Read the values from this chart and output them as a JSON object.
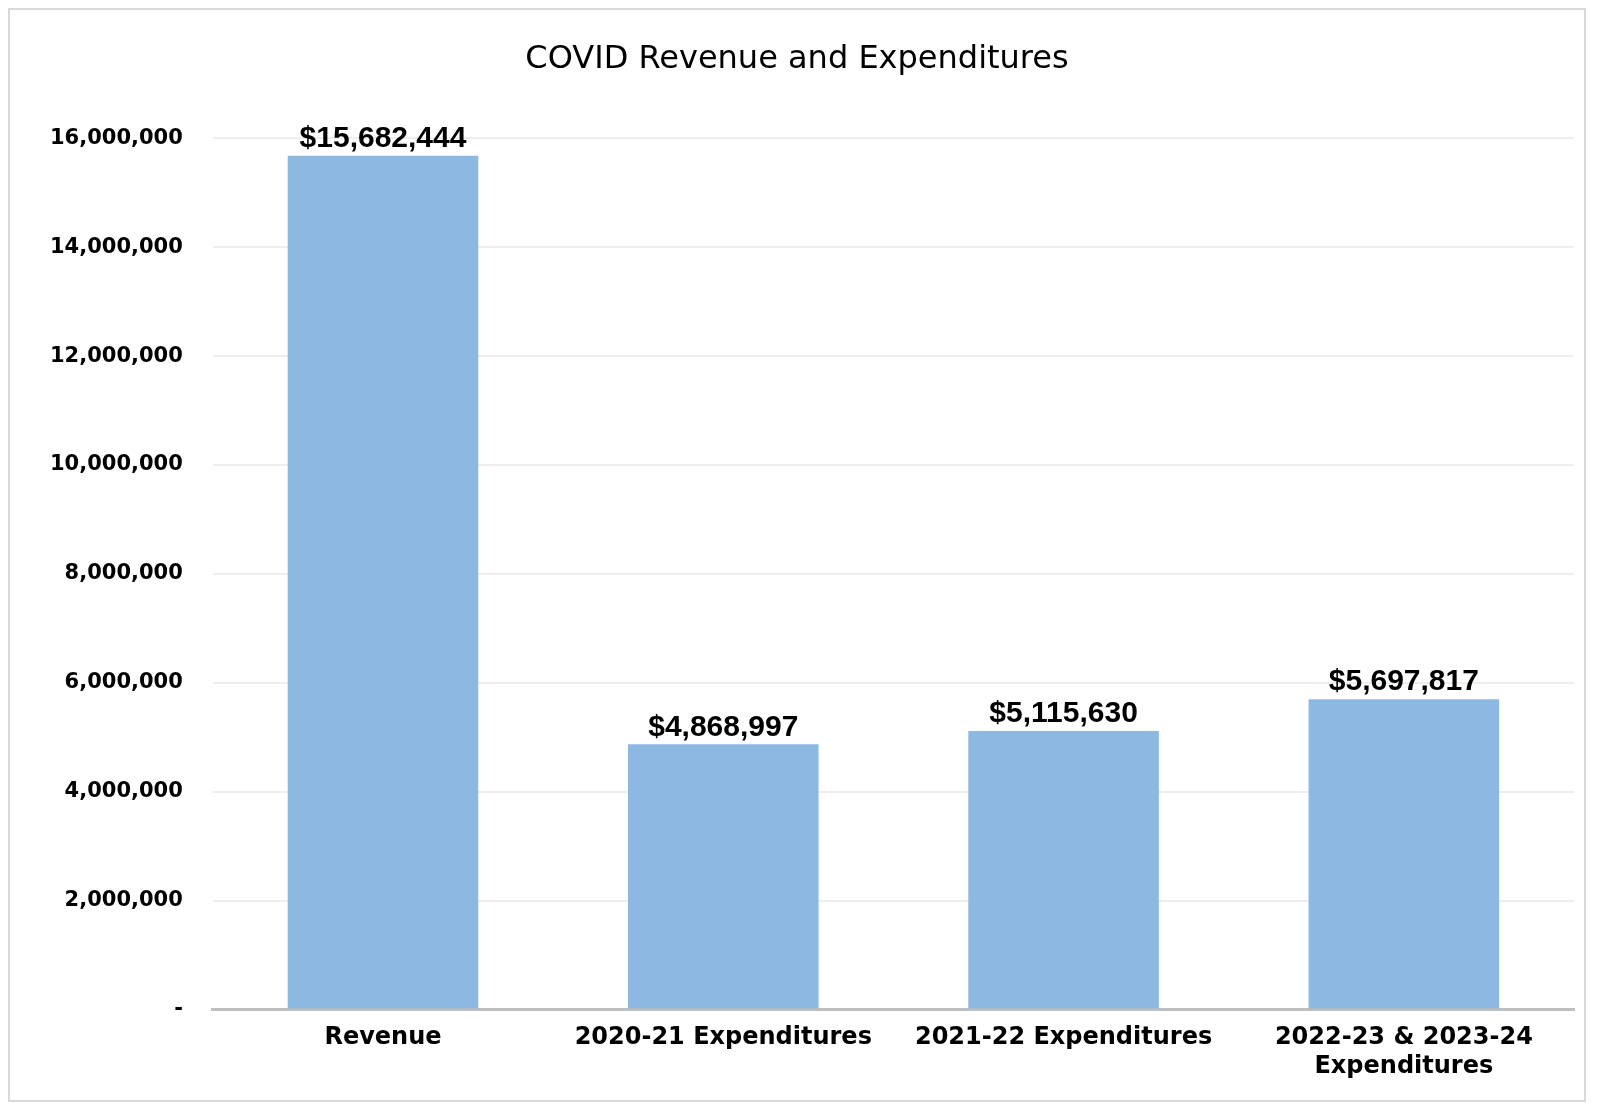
{
  "chart_data": {
    "type": "bar",
    "title": "COVID Revenue and Expenditures",
    "categories": [
      "Revenue",
      "2020-21 Expenditures",
      "2021-22 Expenditures",
      "2022-23 & 2023-24 Expenditures"
    ],
    "values": [
      15682444,
      4868997,
      5115630,
      5697817
    ],
    "value_labels": [
      "$15,682,444",
      "$4,868,997",
      "$5,115,630",
      "$5,697,817"
    ],
    "color": "#8db8e2",
    "ylim": [
      0,
      16000000
    ],
    "yticks": [
      {
        "value": 0,
        "label": "-"
      },
      {
        "value": 2000000,
        "label": "2,000,000"
      },
      {
        "value": 4000000,
        "label": "4,000,000"
      },
      {
        "value": 6000000,
        "label": "6,000,000"
      },
      {
        "value": 8000000,
        "label": "8,000,000"
      },
      {
        "value": 10000000,
        "label": "10,000,000"
      },
      {
        "value": 12000000,
        "label": "12,000,000"
      },
      {
        "value": 14000000,
        "label": "14,000,000"
      },
      {
        "value": 16000000,
        "label": "16,000,000"
      }
    ],
    "grid": "y"
  }
}
